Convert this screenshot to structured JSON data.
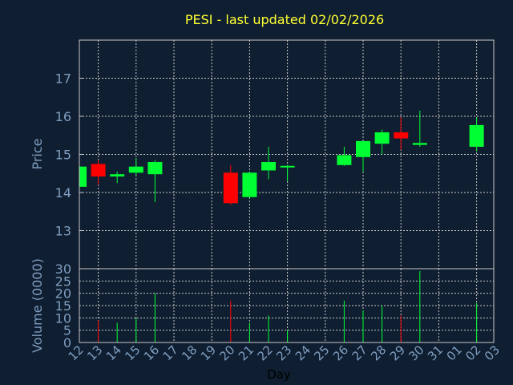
{
  "chart_data": {
    "type": "candlestick",
    "title": "PESI - last updated 02/02/2026",
    "xlabel": "Day",
    "price_panel": {
      "ylabel": "Price",
      "ylim": [
        12,
        18
      ],
      "yticks": [
        13,
        14,
        15,
        16,
        17
      ]
    },
    "volume_panel": {
      "ylabel": "Volume (0000)",
      "ylim": [
        0,
        30
      ],
      "yticks": [
        0,
        5,
        10,
        15,
        20,
        25,
        30
      ]
    },
    "x_tick_labels": [
      "12",
      "13",
      "14",
      "15",
      "16",
      "17",
      "18",
      "19",
      "20",
      "21",
      "22",
      "23",
      "24",
      "25",
      "26",
      "27",
      "28",
      "29",
      "30",
      "31",
      "01",
      "02",
      "03"
    ],
    "colors": {
      "up": "#00ff33",
      "down": "#ff0000",
      "grid": "#c8c8c8",
      "axis_text": "#7f9ec0",
      "title": "#ffff33",
      "xlabel": "#000000",
      "frame": "#c8c8c8"
    },
    "candles": [
      {
        "day": "12",
        "open": 14.15,
        "high": 14.7,
        "low": 14.1,
        "close": 14.68,
        "volume": 0
      },
      {
        "day": "13",
        "open": 14.75,
        "high": 14.85,
        "low": 14.2,
        "close": 14.42,
        "volume": 9
      },
      {
        "day": "14",
        "open": 14.42,
        "high": 14.55,
        "low": 14.25,
        "close": 14.48,
        "volume": 8
      },
      {
        "day": "15",
        "open": 14.52,
        "high": 14.9,
        "low": 14.45,
        "close": 14.68,
        "volume": 10
      },
      {
        "day": "16",
        "open": 14.48,
        "high": 14.85,
        "low": 13.75,
        "close": 14.8,
        "volume": 20
      },
      {
        "day": "20",
        "open": 14.52,
        "high": 14.72,
        "low": 13.68,
        "close": 13.72,
        "volume": 17
      },
      {
        "day": "21",
        "open": 13.88,
        "high": 14.55,
        "low": 13.85,
        "close": 14.52,
        "volume": 8
      },
      {
        "day": "22",
        "open": 14.58,
        "high": 15.2,
        "low": 14.35,
        "close": 14.8,
        "volume": 11
      },
      {
        "day": "23",
        "open": 14.67,
        "high": 14.72,
        "low": 14.3,
        "close": 14.7,
        "volume": 5
      },
      {
        "day": "26",
        "open": 14.72,
        "high": 15.2,
        "low": 14.7,
        "close": 14.98,
        "volume": 17
      },
      {
        "day": "27",
        "open": 14.93,
        "high": 15.35,
        "low": 14.55,
        "close": 15.35,
        "volume": 13
      },
      {
        "day": "28",
        "open": 15.28,
        "high": 15.65,
        "low": 15.0,
        "close": 15.58,
        "volume": 15
      },
      {
        "day": "29",
        "open": 15.58,
        "high": 15.98,
        "low": 15.12,
        "close": 15.42,
        "volume": 11
      },
      {
        "day": "30",
        "open": 15.25,
        "high": 16.15,
        "low": 15.2,
        "close": 15.3,
        "volume": 29
      },
      {
        "day": "02",
        "open": 15.2,
        "high": 15.97,
        "low": 15.08,
        "close": 15.77,
        "volume": 16
      }
    ]
  }
}
